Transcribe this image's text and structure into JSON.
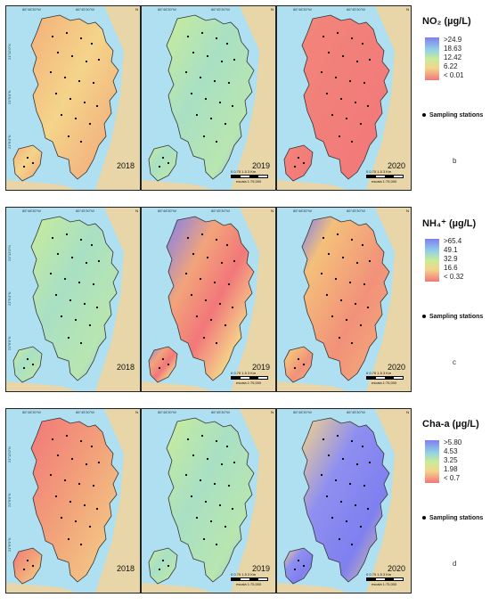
{
  "coord_labels": {
    "top": [
      "86°48'30\"W",
      "86°45'30\"W",
      "86°48'30\"W",
      "86°45'30\"W",
      "86°48'30\"W",
      "86°45'30\"W"
    ],
    "left": [
      "21°12'0\"N",
      "21°9'0\"N",
      "21°6'0\"N"
    ]
  },
  "scale": {
    "ticks": "0  0.75  1.5        3  Km",
    "caption": "escala 1:75,000"
  },
  "north_label": "N",
  "rows": [
    {
      "id": "no2",
      "letter": "b",
      "legend_title": "NO₂  (µg/L)",
      "legend_values": [
        ">24.9",
        "18.63",
        "12.42",
        "6.22",
        "< 0.01"
      ],
      "sampling_label": "Sampling stations",
      "panels": [
        {
          "year": "2018",
          "pattern": "orange-yellow"
        },
        {
          "year": "2019",
          "pattern": "green-blue"
        },
        {
          "year": "2020",
          "pattern": "red"
        }
      ]
    },
    {
      "id": "nh4",
      "letter": "c",
      "legend_title": "NH₄⁺ (µg/L)",
      "legend_values": [
        ">65.4",
        "49.1",
        "32.9",
        "16.6",
        "< 0.32"
      ],
      "sampling_label": "Sampling stations",
      "panels": [
        {
          "year": "2018",
          "pattern": "green-blue"
        },
        {
          "year": "2019",
          "pattern": "mixed-red-blue"
        },
        {
          "year": "2020",
          "pattern": "orange-red"
        }
      ]
    },
    {
      "id": "cha",
      "letter": "d",
      "legend_title": "Cha-a (µg/L)",
      "legend_values": [
        ">5.80",
        "4.53",
        "3.25",
        "1.98",
        "< 0.7"
      ],
      "sampling_label": "Sampling stations",
      "panels": [
        {
          "year": "2018",
          "pattern": "red-yellow"
        },
        {
          "year": "2019",
          "pattern": "green-blue"
        },
        {
          "year": "2020",
          "pattern": "blue-yellow"
        }
      ]
    }
  ],
  "colors": {
    "ramp_high": "#7f7ff0",
    "ramp_mid_high": "#8fd0e8",
    "ramp_mid": "#c8ec9a",
    "ramp_mid_low": "#f4d48a",
    "ramp_low": "#f2777a",
    "sea": "#aee0f2",
    "land": "#e8d5a8"
  }
}
